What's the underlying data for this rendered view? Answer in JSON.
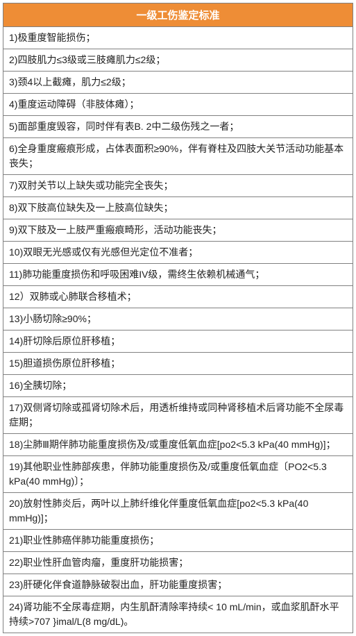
{
  "table": {
    "title": "一级工伤鉴定标准",
    "header_bg": "#ee8d36",
    "header_color": "#ffffff",
    "border_color": "#808080",
    "row_bg": "#ffffff",
    "text_color": "#222222",
    "font_size_header": 15,
    "font_size_row": 14,
    "rows": [
      "1)极重度智能损伤；",
      "2)四肢肌力≤3级或三肢瘫肌力≤2级；",
      "3)颈4以上截瘫，肌力≤2级；",
      "4)重度运动障碍（非肢体瘫）；",
      "5)面部重度毁容，同时伴有表B. 2中二级伤残之一者；",
      "6)全身重度瘢痕形成，占体表面积≥90%，伴有脊柱及四肢大关节活动功能基本丧失；",
      "7)双肘关节以上缺失或功能完全丧失；",
      "8)双下肢高位缺失及一上肢高位缺失；",
      "9)双下肢及一上肢严重瘢痕畸形，活动功能丧失；",
      "10)双眼无光感或仅有光感但光定位不准者；",
      "11)肺功能重度损伤和呼吸困难IV级，需终生依赖机械通气；",
      "12）双肺或心肺联合移植术；",
      "13)小肠切除≥90%；",
      "14)肝切除后原位肝移植；",
      "15)胆道损伤原位肝移植；",
      "16)全胰切除；",
      "17)双侧肾切除或孤肾切除术后，用透析维持或同种肾移植术后肾功能不全尿毒症期；",
      "18)尘肺Ⅲ期伴肺功能重度损伤及/或重度低氧血症[po2<5.3 kPa(40 mmHg)]；",
      "19)其他职业性肺部疾患，伴肺功能重度损伤及/或重度低氧血症〔PO2<5.3 kPa(40 mmHg)〕；",
      "20)放射性肺炎后，两叶以上肺纤维化伴重度低氧血症[po2<5.3 kPa(40 mmHg)]；",
      "21)职业性肺癌伴肺功能重度损伤；",
      "22)职业性肝血管肉瘤，重度肝功能损害；",
      "23)肝硬化伴食道静脉破裂出血，肝功能重度损害；",
      "24)肾功能不全尿毒症期，内生肌酐清除率持续< 10 mL/min，或血浆肌酐水平持续>707 }imal/L(8 mg/dL)。"
    ]
  }
}
